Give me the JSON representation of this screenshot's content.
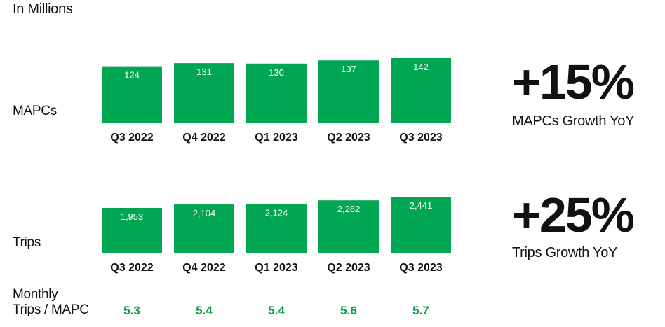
{
  "units_label": "In Millions",
  "row_labels": {
    "mapcs": "MAPCs",
    "trips": "Trips",
    "ratio_line1": "Monthly",
    "ratio_line2": "Trips / MAPC"
  },
  "highlights": [
    {
      "value": "+15%",
      "caption": "MAPCs Growth YoY"
    },
    {
      "value": "+25%",
      "caption": "Trips Growth YoY"
    }
  ],
  "colors": {
    "bar": "#00A651",
    "ratio_text": "#0F9D4B",
    "axis": "#444444",
    "bar_label": "#FFFFFF"
  },
  "chart_data": [
    {
      "type": "bar",
      "categories": [
        "Q3 2022",
        "Q4 2022",
        "Q1 2023",
        "Q2 2023",
        "Q3 2023"
      ],
      "values": [
        124,
        131,
        130,
        137,
        142
      ],
      "value_labels": [
        "124",
        "131",
        "130",
        "137",
        "142"
      ],
      "series": [
        {
          "values": [
            124,
            131,
            130,
            137,
            142
          ]
        }
      ]
    },
    {
      "type": "bar",
      "categories": [
        "Q3 2022",
        "Q4 2022",
        "Q1 2023",
        "Q2 2023",
        "Q3 2023"
      ],
      "values": [
        1953,
        2104,
        2124,
        2282,
        2441
      ],
      "value_labels": [
        "1,953",
        "2,104",
        "2,124",
        "2,282",
        "2,441"
      ],
      "series": [
        {
          "values": [
            1953,
            2104,
            2124,
            2282,
            2441
          ]
        }
      ]
    }
  ],
  "monthly_trips_per_mapc": [
    "5.3",
    "5.4",
    "5.4",
    "5.6",
    "5.7"
  ]
}
